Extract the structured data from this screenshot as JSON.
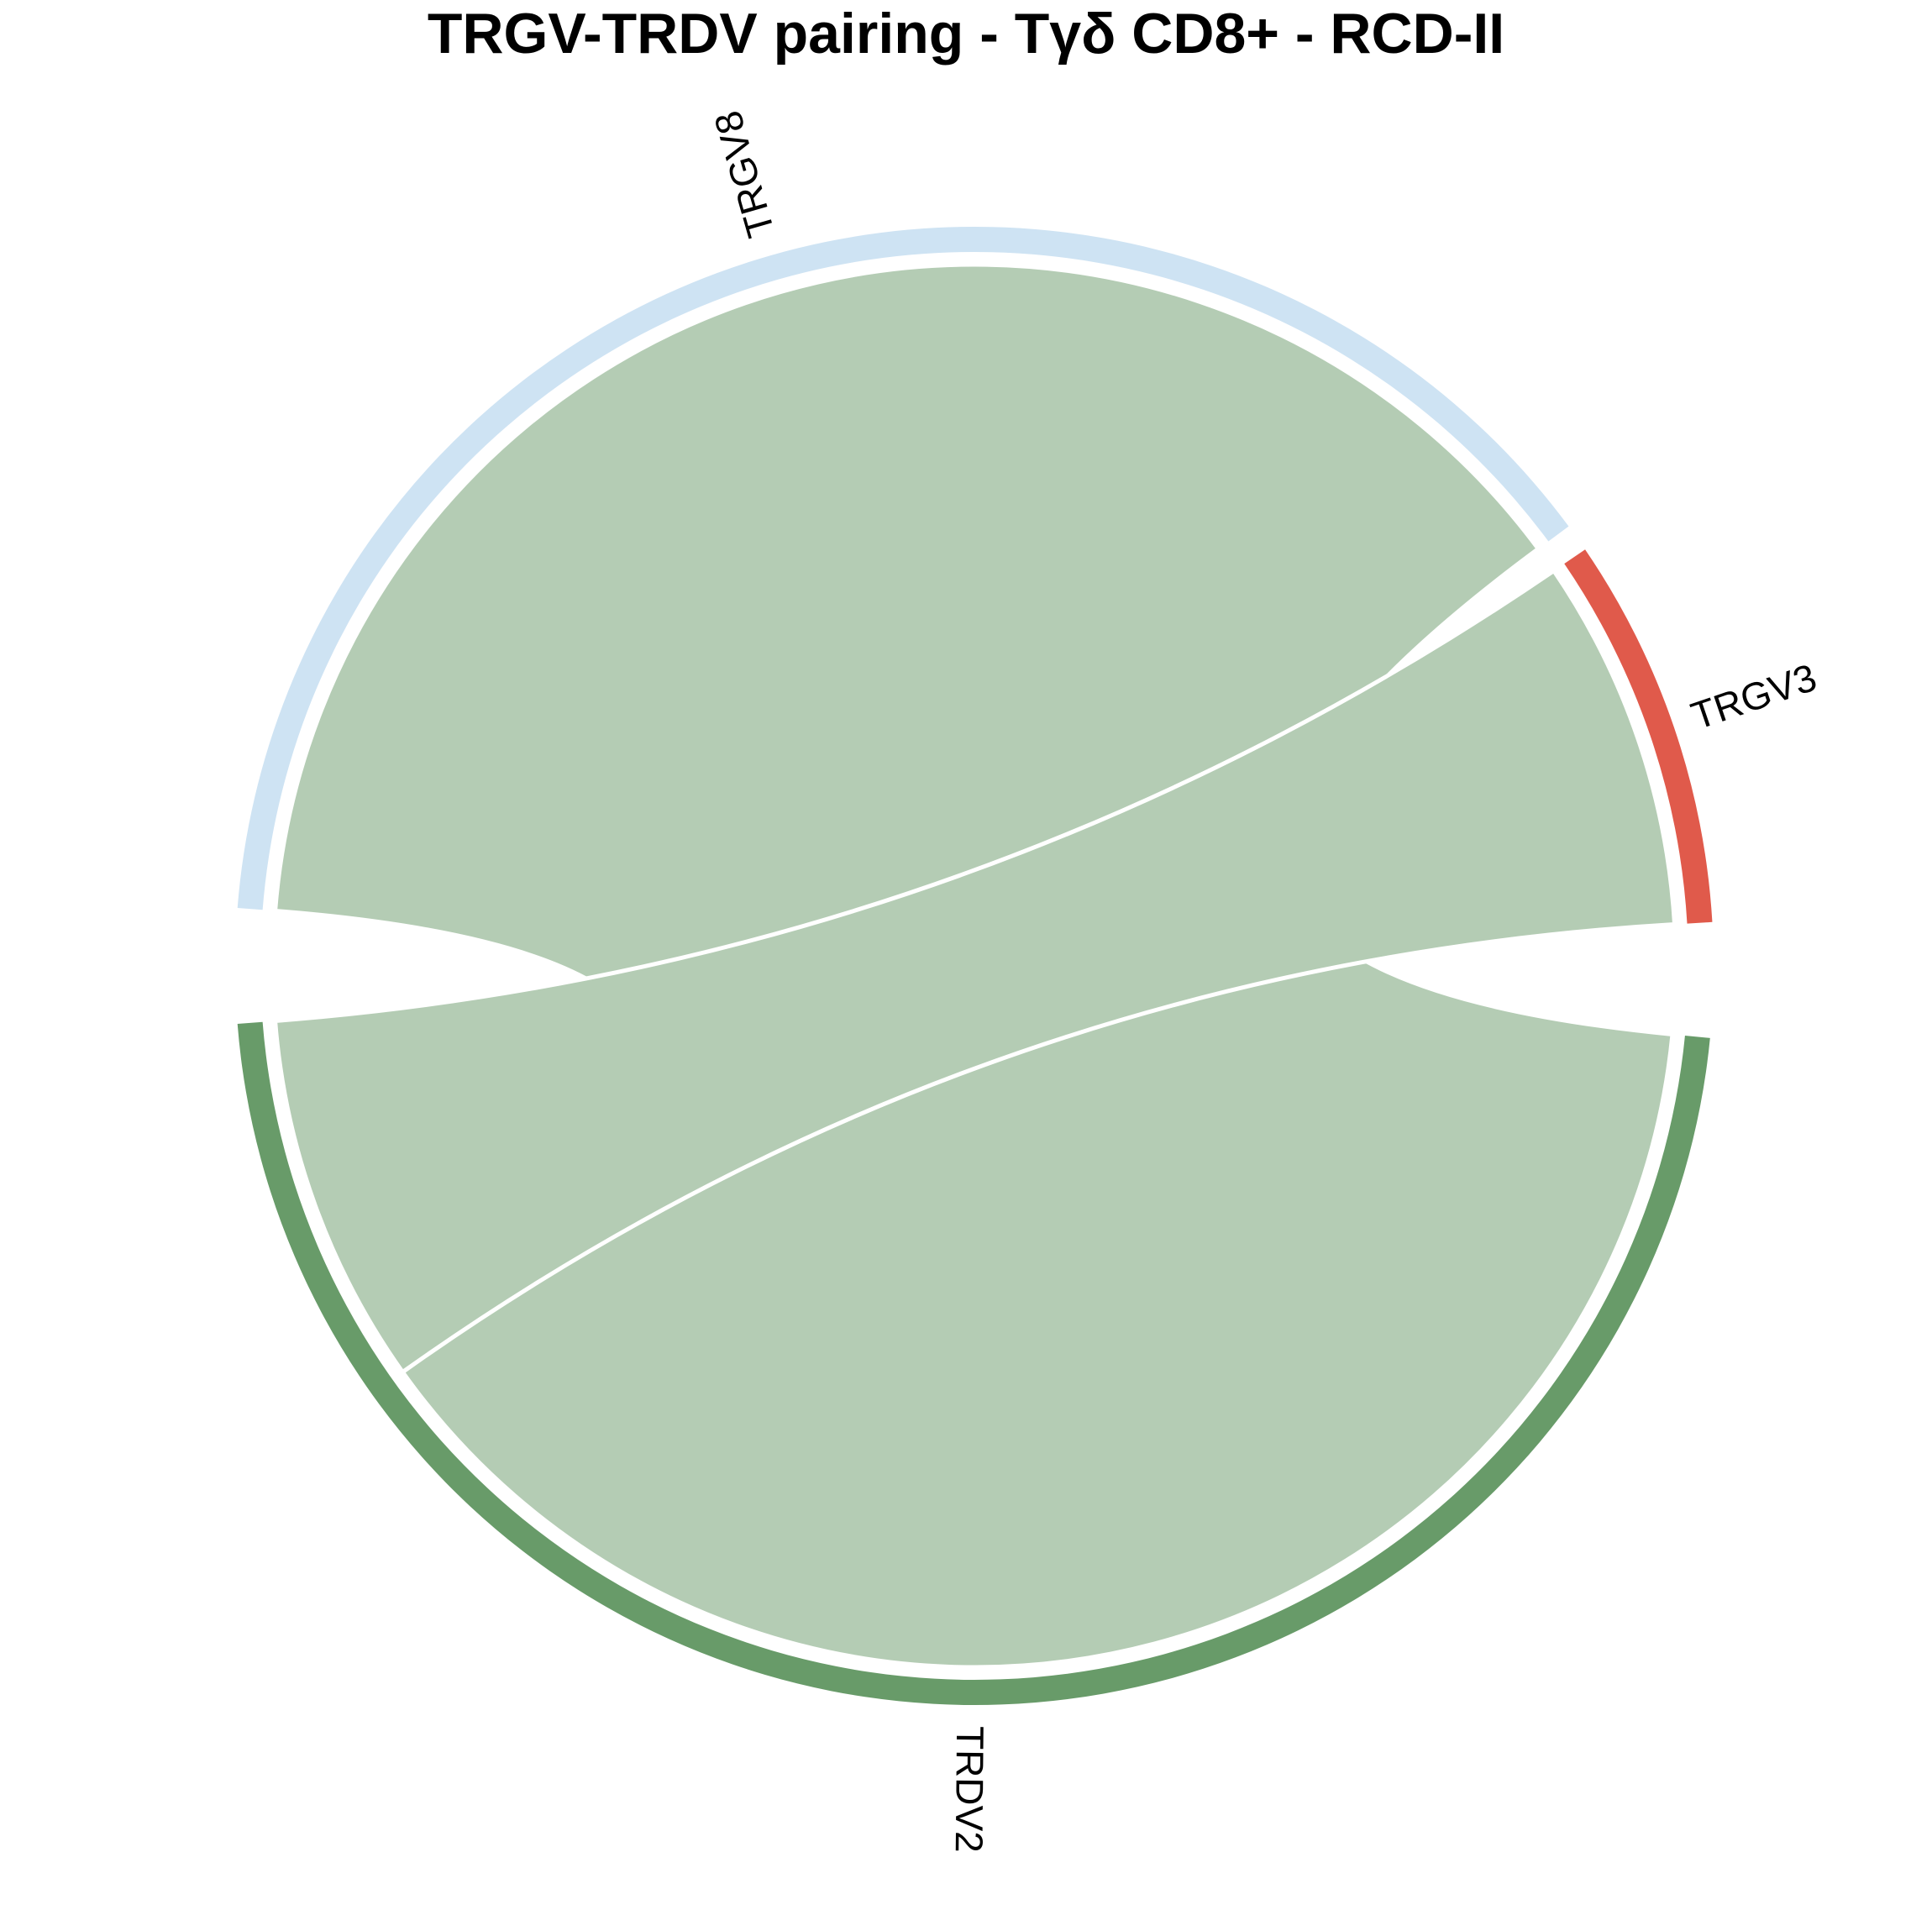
{
  "chart_data": {
    "type": "chord",
    "title": "TRGV-TRDV pairing - Tγδ CD8+ - RCD-II",
    "sectors": [
      {
        "name": "TRGV8",
        "group": "TRGV",
        "value": 18,
        "color": "#CEE3F3"
      },
      {
        "name": "TRGV3",
        "group": "TRGV",
        "value": 4,
        "color": "#E05A4B"
      },
      {
        "name": "TRDV2",
        "group": "TRDV",
        "value": 22,
        "color": "#689B69"
      }
    ],
    "links": [
      {
        "from": "TRGV8",
        "to": "TRDV2",
        "value": 18
      },
      {
        "from": "TRGV3",
        "to": "TRDV2",
        "value": 4
      }
    ],
    "link_color": "#B4CCB4"
  }
}
